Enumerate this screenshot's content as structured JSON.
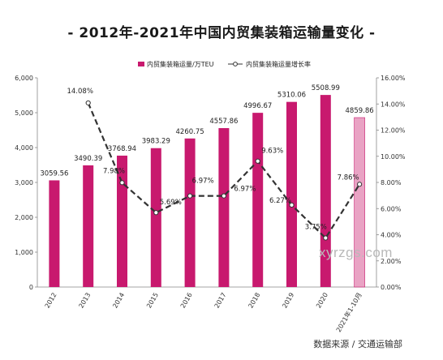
{
  "title": "- 2012年-2021年中国内贸集装箱运输量变化 -",
  "source": "数据来源 / 交通运输部",
  "watermark": "xyrzgs.com",
  "chart_data": {
    "type": "bar",
    "categories": [
      "2012",
      "2013",
      "2014",
      "2015",
      "2016",
      "2017",
      "2018",
      "2019",
      "2020",
      "2021年1-10月"
    ],
    "series": [
      {
        "name": "内贸集装箱运量/万TEU",
        "type": "bar",
        "axis": "left",
        "color": "#c8196e",
        "highlight_last_color": "#e9a3c4",
        "values": [
          3059.56,
          3490.39,
          3768.94,
          3983.29,
          4260.75,
          4557.86,
          4996.67,
          5310.06,
          5508.99,
          4859.86
        ],
        "labels": [
          "3059.56",
          "3490.39",
          "3768.94",
          "3983.29",
          "4260.75",
          "4557.86",
          "4996.67",
          "5310.06",
          "5508.99",
          "4859.86"
        ]
      },
      {
        "name": "内贸集装箱运量增长率",
        "type": "line",
        "axis": "right",
        "color": "#333333",
        "dashed": true,
        "values": [
          null,
          14.08,
          7.98,
          5.69,
          6.97,
          6.97,
          9.63,
          6.27,
          3.75,
          7.86
        ],
        "labels": [
          "",
          "14.08%",
          "7.98%",
          "5.69%",
          "6.97%",
          "6.97%",
          "9.63%",
          "6.27%",
          "3.75%",
          "7.86%"
        ]
      }
    ],
    "y_left": {
      "min": 0,
      "max": 6000,
      "step": 1000,
      "tick_labels": [
        "0",
        "1,000",
        "2,000",
        "3,000",
        "4,000",
        "5,000",
        "6,000"
      ]
    },
    "y_right": {
      "min": 0,
      "max": 16,
      "step": 2,
      "tick_labels": [
        "0.00%",
        "2.00%",
        "4.00%",
        "6.00%",
        "8.00%",
        "10.00%",
        "12.00%",
        "14.00%",
        "16.00%"
      ]
    },
    "grid": false,
    "legend_position": "top-center"
  }
}
